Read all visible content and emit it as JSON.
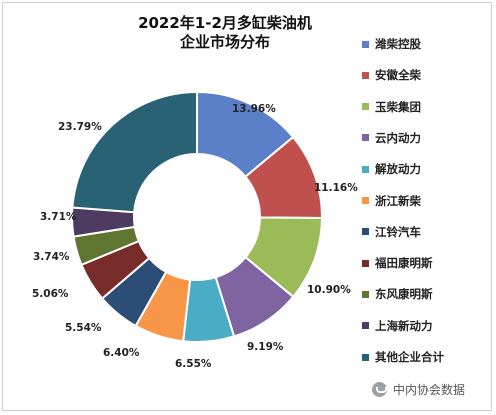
{
  "chart_data": {
    "type": "pie",
    "title": "2022年1-2月多缸柴油机\n企业市场分布",
    "donut": true,
    "legend_position": "right",
    "categories": [
      "潍柴控股",
      "安徽全柴",
      "玉柴集团",
      "云内动力",
      "解放动力",
      "浙江新柴",
      "江铃汽车",
      "福田康明斯",
      "东风康明斯",
      "上海新动力",
      "其他企业合计"
    ],
    "values": [
      13.96,
      11.16,
      10.9,
      9.19,
      6.55,
      6.4,
      5.54,
      5.06,
      3.74,
      3.71,
      23.79
    ],
    "labels": [
      "13.96%",
      "11.16%",
      "10.90%",
      "9.19%",
      "6.55%",
      "6.40%",
      "5.54%",
      "5.06%",
      "3.74%",
      "3.71%",
      "23.79%"
    ],
    "colors": [
      "#5b80c8",
      "#c0504d",
      "#9bbb59",
      "#8064a2",
      "#4bacc6",
      "#f79646",
      "#2c4d75",
      "#772c2a",
      "#5f7530",
      "#4d3b62",
      "#2a6275"
    ]
  },
  "title_lines": [
    "2022年1-2月多缸柴油机",
    "企业市场分布"
  ],
  "watermark": {
    "text": "中内协会数据",
    "icon": "wechat-icon"
  }
}
